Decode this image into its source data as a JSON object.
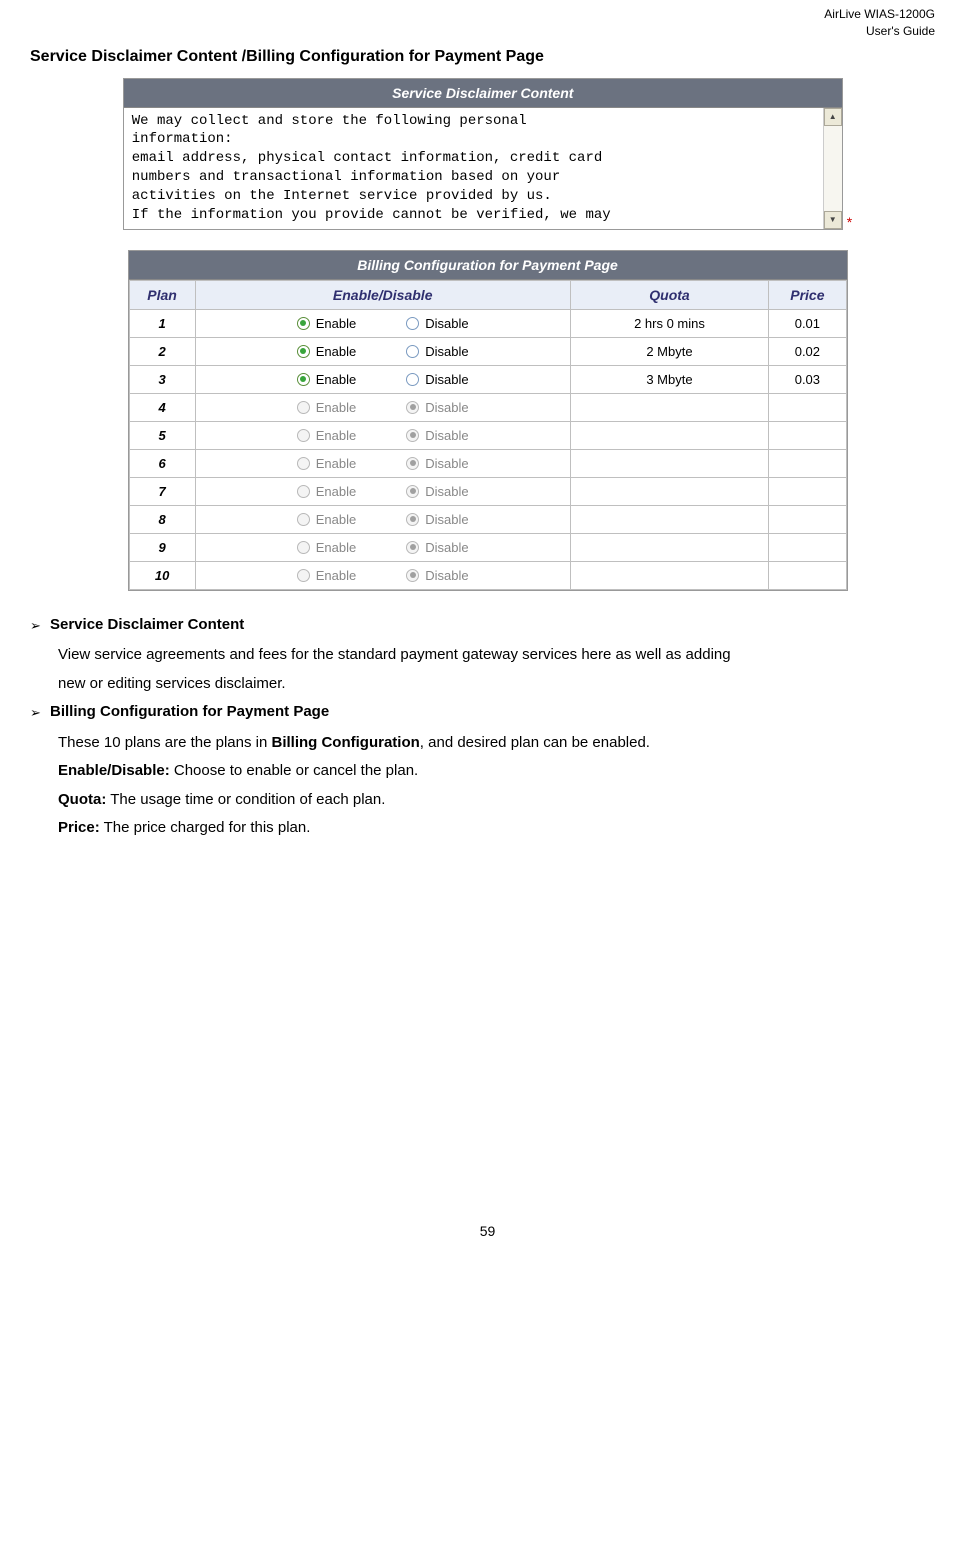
{
  "header": {
    "line1": "AirLive WIAS-1200G",
    "line2": "User's Guide"
  },
  "section_title": "Service Disclaimer Content /Billing Configuration for Payment Page",
  "disclaimer": {
    "panel_title": "Service Disclaimer Content",
    "text": "We may collect and store the following personal\ninformation:\nemail address, physical contact information, credit card\nnumbers and transactional information based on your\nactivities on the Internet service provided by us.\nIf the information you provide cannot be verified, we may",
    "scroll_up": "▲",
    "scroll_down": "▼",
    "asterisk": "*"
  },
  "billing": {
    "panel_title": "Billing Configuration for Payment Page",
    "columns": {
      "plan": "Plan",
      "ed": "Enable/Disable",
      "quota": "Quota",
      "price": "Price"
    },
    "label_enable": "Enable",
    "label_disable": "Disable",
    "rows": [
      {
        "plan": "1",
        "active": true,
        "selected": "enable",
        "quota": "2 hrs 0 mins",
        "price": "0.01"
      },
      {
        "plan": "2",
        "active": true,
        "selected": "enable",
        "quota": "2 Mbyte",
        "price": "0.02"
      },
      {
        "plan": "3",
        "active": true,
        "selected": "enable",
        "quota": "3 Mbyte",
        "price": "0.03"
      },
      {
        "plan": "4",
        "active": false,
        "selected": "disable",
        "quota": "",
        "price": ""
      },
      {
        "plan": "5",
        "active": false,
        "selected": "disable",
        "quota": "",
        "price": ""
      },
      {
        "plan": "6",
        "active": false,
        "selected": "disable",
        "quota": "",
        "price": ""
      },
      {
        "plan": "7",
        "active": false,
        "selected": "disable",
        "quota": "",
        "price": ""
      },
      {
        "plan": "8",
        "active": false,
        "selected": "disable",
        "quota": "",
        "price": ""
      },
      {
        "plan": "9",
        "active": false,
        "selected": "disable",
        "quota": "",
        "price": ""
      },
      {
        "plan": "10",
        "active": false,
        "selected": "disable",
        "quota": "",
        "price": ""
      }
    ]
  },
  "body": {
    "arrow": "➢",
    "item1_title": "Service Disclaimer Content",
    "item1_line1": "View service agreements and fees for the standard payment gateway services here as well as adding",
    "item1_line2": "new or editing services disclaimer.",
    "item2_title": "Billing Configuration for Payment Page",
    "item2_line1a": "These 10 plans are the plans in ",
    "item2_line1b": "Billing Configuration",
    "item2_line1c": ", and desired plan can be enabled.",
    "ed_label": "Enable/Disable:",
    "ed_text": " Choose to enable or cancel the plan.",
    "quota_label": "Quota:",
    "quota_text": " The usage time or condition of each plan.",
    "price_label": "Price:",
    "price_text": " The price charged for this plan."
  },
  "page_number": "59"
}
